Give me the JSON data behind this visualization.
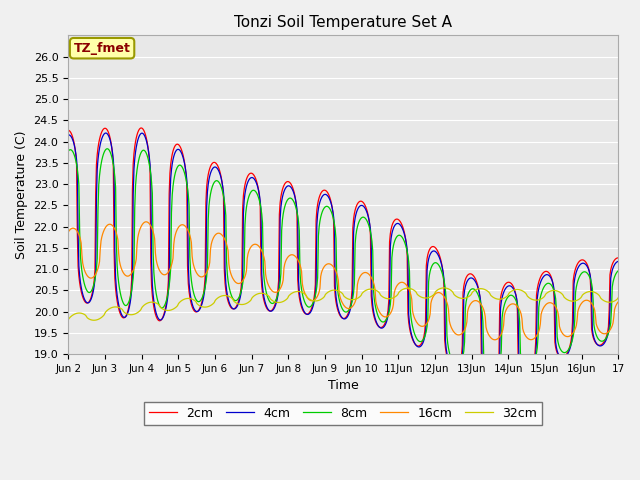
{
  "title": "Tonzi Soil Temperature Set A",
  "xlabel": "Time",
  "ylabel": "Soil Temperature (C)",
  "ylim": [
    19.0,
    26.5
  ],
  "yticks": [
    19.0,
    19.5,
    20.0,
    20.5,
    21.0,
    21.5,
    22.0,
    22.5,
    23.0,
    23.5,
    24.0,
    24.5,
    25.0,
    25.5,
    26.0
  ],
  "xtick_labels": [
    "Jun 2",
    "Jun 3",
    "Jun 4",
    "Jun 5",
    "Jun 6",
    "Jun 7",
    "Jun 8",
    "Jun 9",
    "Jun 10",
    "11Jun",
    "12Jun",
    "13Jun",
    "14Jun",
    "15Jun",
    "16Jun",
    "17"
  ],
  "line_colors": {
    "2cm": "#ff0000",
    "4cm": "#0000cc",
    "8cm": "#00cc00",
    "16cm": "#ff8800",
    "32cm": "#cccc00"
  },
  "legend_label": "TZ_fmet",
  "fig_bg": "#f0f0f0",
  "plot_bg": "#e8e8e8",
  "grid_color": "#ffffff"
}
